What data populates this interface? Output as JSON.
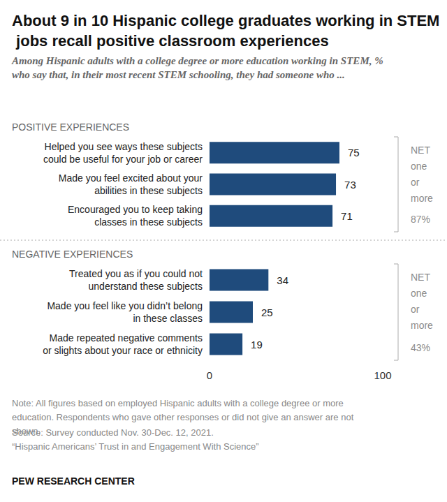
{
  "title": "About 9 in 10 Hispanic college graduates working in STEM jobs recall positive classroom experiences",
  "subtitle": "Among Hispanic adults with a college degree or more education working in STEM, % who say that, in their most recent STEM schooling, they had someone who ...",
  "notes": [
    "Note: All figures based on employed Hispanic adults with a college degree or more education. Respondents who gave other responses or did not give an answer are not shown.",
    "Source: Survey conducted Nov. 30-Dec. 12, 2021.",
    "“Hispanic Americans’ Trust in and Engagement With Science”"
  ],
  "credit": "PEW RESEARCH CENTER",
  "chart_data": [
    {
      "type": "bar",
      "title": "POSITIVE EXPERIENCES",
      "orientation": "horizontal",
      "categories": [
        "Helped you see ways these subjects\ncould be useful for your job or career",
        "Made you feel excited about your\nabilities in these subjects",
        "Encouraged you to keep taking\nclasses in these subjects"
      ],
      "values": [
        75,
        73,
        71
      ],
      "color": "#1f4b7c",
      "data_labels": true,
      "xlim": [
        0,
        100
      ],
      "tick_labels": false,
      "grid": false,
      "annotations": [
        "NET one or more",
        "87%"
      ]
    },
    {
      "type": "bar",
      "title": "NEGATIVE EXPERIENCES",
      "orientation": "horizontal",
      "categories": [
        "Treated you as if you could not\nunderstand these subjects",
        "Made you feel like you didn’t belong\nin these classes",
        "Made repeated negative comments\nor slights about your race or ethnicity"
      ],
      "values": [
        34,
        25,
        19
      ],
      "color": "#1f4b7c",
      "data_labels": true,
      "xlim": [
        0,
        100
      ],
      "xticks": [
        0,
        100
      ],
      "grid": false,
      "annotations": [
        "NET one or more",
        "43%"
      ]
    }
  ]
}
